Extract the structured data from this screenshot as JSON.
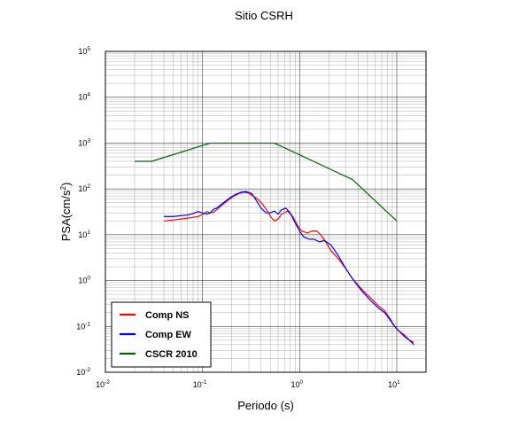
{
  "chart_data": {
    "type": "line",
    "title": "Sitio CSRH",
    "xlabel": "Periodo (s)",
    "ylabel": "PSA(cm/s",
    "ylabel_exp": "2",
    "ylabel_close": ")",
    "x_scale": "log",
    "y_scale": "log",
    "xlim": [
      0.01,
      20
    ],
    "ylim": [
      0.01,
      100000
    ],
    "grid": true,
    "legend_position": "bottom-left",
    "x_ticks": [
      {
        "base": "10",
        "exp": "-2"
      },
      {
        "base": "10",
        "exp": "-1"
      },
      {
        "base": "10",
        "exp": "0"
      },
      {
        "base": "10",
        "exp": "1"
      }
    ],
    "y_ticks": [
      {
        "base": "10",
        "exp": "-2"
      },
      {
        "base": "10",
        "exp": "-1"
      },
      {
        "base": "10",
        "exp": "0"
      },
      {
        "base": "10",
        "exp": "1"
      },
      {
        "base": "10",
        "exp": "2"
      },
      {
        "base": "10",
        "exp": "3"
      },
      {
        "base": "10",
        "exp": "4"
      },
      {
        "base": "10",
        "exp": "5"
      }
    ],
    "series": [
      {
        "name": "Comp NS",
        "color": "#ff0000",
        "points": [
          [
            0.04,
            20
          ],
          [
            0.05,
            21
          ],
          [
            0.06,
            22
          ],
          [
            0.07,
            23
          ],
          [
            0.08,
            24
          ],
          [
            0.09,
            25
          ],
          [
            0.1,
            28
          ],
          [
            0.11,
            32
          ],
          [
            0.12,
            30
          ],
          [
            0.13,
            31
          ],
          [
            0.15,
            40
          ],
          [
            0.17,
            50
          ],
          [
            0.19,
            60
          ],
          [
            0.21,
            70
          ],
          [
            0.24,
            80
          ],
          [
            0.27,
            85
          ],
          [
            0.3,
            80
          ],
          [
            0.33,
            70
          ],
          [
            0.37,
            60
          ],
          [
            0.42,
            45
          ],
          [
            0.47,
            32
          ],
          [
            0.5,
            25
          ],
          [
            0.55,
            20
          ],
          [
            0.6,
            22
          ],
          [
            0.65,
            28
          ],
          [
            0.75,
            33
          ],
          [
            0.85,
            25
          ],
          [
            0.95,
            16
          ],
          [
            1.05,
            12
          ],
          [
            1.2,
            11
          ],
          [
            1.35,
            12
          ],
          [
            1.5,
            12
          ],
          [
            1.65,
            10
          ],
          [
            1.85,
            7
          ],
          [
            2.1,
            4.5
          ],
          [
            2.5,
            3
          ],
          [
            3,
            1.8
          ],
          [
            3.5,
            1.1
          ],
          [
            4,
            0.8
          ],
          [
            4.5,
            0.6
          ],
          [
            5.5,
            0.4
          ],
          [
            6.5,
            0.28
          ],
          [
            7.5,
            0.22
          ],
          [
            8.5,
            0.15
          ],
          [
            9.5,
            0.1
          ],
          [
            10.5,
            0.08
          ],
          [
            12,
            0.065
          ],
          [
            13.5,
            0.05
          ],
          [
            15,
            0.045
          ]
        ]
      },
      {
        "name": "Comp EW",
        "color": "#0000ff",
        "points": [
          [
            0.04,
            25
          ],
          [
            0.05,
            25
          ],
          [
            0.06,
            26
          ],
          [
            0.07,
            27
          ],
          [
            0.08,
            29
          ],
          [
            0.09,
            32
          ],
          [
            0.1,
            30
          ],
          [
            0.11,
            28
          ],
          [
            0.12,
            30
          ],
          [
            0.13,
            36
          ],
          [
            0.14,
            38
          ],
          [
            0.16,
            48
          ],
          [
            0.18,
            58
          ],
          [
            0.2,
            68
          ],
          [
            0.22,
            76
          ],
          [
            0.25,
            85
          ],
          [
            0.28,
            88
          ],
          [
            0.32,
            80
          ],
          [
            0.36,
            55
          ],
          [
            0.4,
            38
          ],
          [
            0.45,
            30
          ],
          [
            0.5,
            30
          ],
          [
            0.55,
            33
          ],
          [
            0.6,
            28
          ],
          [
            0.65,
            35
          ],
          [
            0.72,
            38
          ],
          [
            0.8,
            30
          ],
          [
            0.9,
            18
          ],
          [
            1,
            12
          ],
          [
            1.1,
            9
          ],
          [
            1.25,
            8
          ],
          [
            1.4,
            8
          ],
          [
            1.6,
            7
          ],
          [
            1.8,
            7.5
          ],
          [
            2.1,
            6
          ],
          [
            2.5,
            3.5
          ],
          [
            3,
            1.8
          ],
          [
            3.5,
            1.1
          ],
          [
            4,
            0.75
          ],
          [
            4.5,
            0.55
          ],
          [
            5.5,
            0.35
          ],
          [
            6.5,
            0.25
          ],
          [
            7.5,
            0.2
          ],
          [
            8.5,
            0.14
          ],
          [
            9.5,
            0.1
          ],
          [
            10.5,
            0.08
          ],
          [
            12,
            0.06
          ],
          [
            13.5,
            0.05
          ],
          [
            15,
            0.04
          ]
        ]
      },
      {
        "name": "CSCR 2010",
        "color": "#006400",
        "points": [
          [
            0.02,
            400
          ],
          [
            0.03,
            400
          ],
          [
            0.12,
            1000
          ],
          [
            0.55,
            1000
          ],
          [
            3.5,
            160
          ],
          [
            10,
            20
          ]
        ]
      }
    ]
  }
}
